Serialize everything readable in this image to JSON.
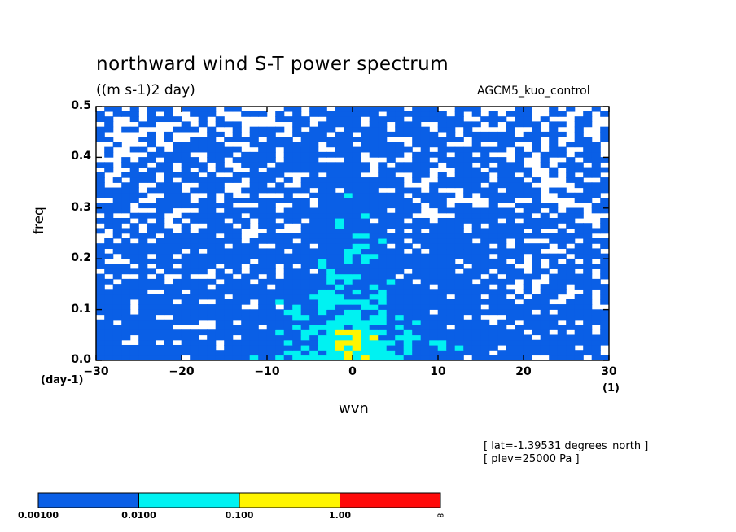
{
  "chart_data": {
    "type": "heatmap",
    "title": "northward wind S-T power spectrum",
    "units": "((m s-1)2 day)",
    "model_label": "AGCM5_kuo_control",
    "xlabel": "wvn",
    "ylabel": "freq",
    "x_unit": "(1)",
    "y_unit": "(day-1)",
    "xlim": [
      -30,
      30
    ],
    "ylim": [
      0,
      0.5
    ],
    "x_ticks": [
      "-30",
      "-20",
      "-10",
      "0",
      "10",
      "20",
      "30"
    ],
    "y_ticks": [
      "0.0",
      "0.1",
      "0.2",
      "0.3",
      "0.4",
      "0.5"
    ],
    "annotations": [
      "[ lat=-1.39531 degrees_north ]",
      "[ plev=25000 Pa ]"
    ],
    "colorbar": {
      "labels": [
        "0.00100",
        "0.0100",
        "0.100",
        "1.00",
        "∞"
      ],
      "levels": [
        0.001,
        0.01,
        0.1,
        1.0
      ],
      "colors": [
        "#0a5fe6",
        "#00f2f2",
        "#fff500",
        "#ff0a0a"
      ]
    }
  }
}
